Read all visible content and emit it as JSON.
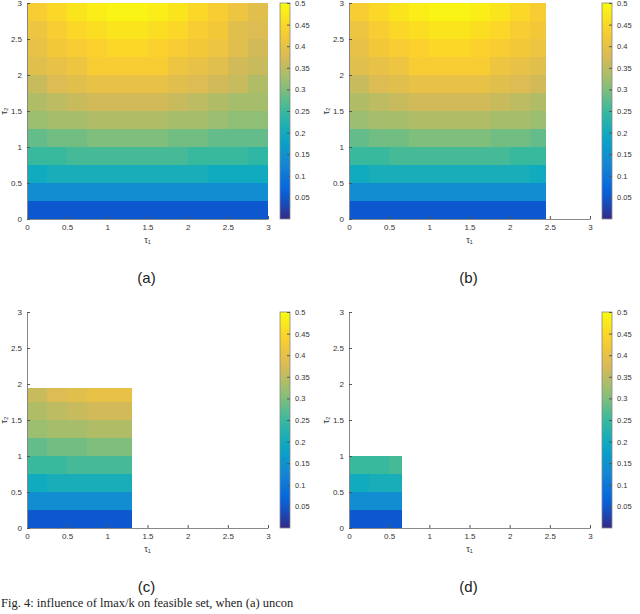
{
  "chart_data": [
    {
      "type": "heatmap",
      "title": "(a)",
      "xlabel": "τ₁",
      "ylabel": "τ₂",
      "xlim": [
        0,
        3
      ],
      "ylim": [
        0,
        3
      ],
      "xticks": [
        0,
        0.5,
        1,
        1.5,
        2,
        2.5,
        3
      ],
      "yticks": [
        0,
        0.5,
        1,
        1.5,
        2,
        2.5,
        3
      ],
      "grid": false,
      "x": [
        0,
        0.25,
        0.5,
        0.75,
        1,
        1.25,
        1.5,
        1.75,
        2,
        2.25,
        2.5,
        2.75,
        3
      ],
      "y": [
        0,
        0.25,
        0.5,
        0.75,
        1,
        1.25,
        1.5,
        1.75,
        2,
        2.25,
        2.5,
        2.75,
        3
      ],
      "cells": [
        [
          0.05,
          0.05,
          0.05,
          0.05,
          0.05,
          0.05,
          0.05,
          0.05,
          0.05,
          0.05,
          0.05,
          0.05
        ],
        [
          0.14,
          0.14,
          0.14,
          0.14,
          0.14,
          0.14,
          0.14,
          0.14,
          0.14,
          0.14,
          0.14,
          0.14
        ],
        [
          0.2,
          0.21,
          0.21,
          0.21,
          0.21,
          0.21,
          0.21,
          0.21,
          0.21,
          0.2,
          0.2,
          0.2
        ],
        [
          0.25,
          0.25,
          0.26,
          0.26,
          0.26,
          0.26,
          0.26,
          0.26,
          0.25,
          0.25,
          0.25,
          0.24
        ],
        [
          0.28,
          0.29,
          0.29,
          0.3,
          0.3,
          0.3,
          0.3,
          0.29,
          0.29,
          0.28,
          0.28,
          0.28
        ],
        [
          0.32,
          0.33,
          0.33,
          0.34,
          0.34,
          0.34,
          0.34,
          0.33,
          0.33,
          0.32,
          0.31,
          0.31
        ],
        [
          0.34,
          0.35,
          0.36,
          0.37,
          0.37,
          0.37,
          0.37,
          0.36,
          0.35,
          0.34,
          0.33,
          0.33
        ],
        [
          0.36,
          0.38,
          0.39,
          0.4,
          0.4,
          0.4,
          0.4,
          0.39,
          0.38,
          0.37,
          0.36,
          0.34
        ],
        [
          0.39,
          0.4,
          0.41,
          0.43,
          0.43,
          0.43,
          0.43,
          0.41,
          0.4,
          0.39,
          0.37,
          0.36
        ],
        [
          0.4,
          0.42,
          0.43,
          0.44,
          0.45,
          0.45,
          0.44,
          0.43,
          0.42,
          0.41,
          0.39,
          0.37
        ],
        [
          0.41,
          0.43,
          0.45,
          0.46,
          0.47,
          0.47,
          0.46,
          0.45,
          0.43,
          0.42,
          0.39,
          0.38
        ],
        [
          0.43,
          0.45,
          0.47,
          0.48,
          0.49,
          0.49,
          0.48,
          0.47,
          0.45,
          0.43,
          0.41,
          0.39
        ]
      ],
      "colorbar": {
        "range": [
          0,
          0.5
        ],
        "ticks": [
          0.05,
          0.1,
          0.15,
          0.2,
          0.25,
          0.3,
          0.35,
          0.4,
          0.45,
          0.5
        ]
      }
    },
    {
      "type": "heatmap",
      "title": "(b)",
      "xlabel": "τ₁",
      "ylabel": "τ₂",
      "xlim": [
        0,
        3
      ],
      "ylim": [
        0,
        3
      ],
      "xticks": [
        0,
        0.5,
        1,
        1.5,
        2,
        2.5,
        3
      ],
      "yticks": [
        0,
        0.5,
        1,
        1.5,
        2,
        2.5,
        3
      ],
      "grid": false,
      "x": [
        0,
        0.25,
        0.5,
        0.75,
        1,
        1.25,
        1.5,
        1.75,
        2,
        2.25,
        2.45
      ],
      "y": [
        0,
        0.25,
        0.5,
        0.75,
        1,
        1.25,
        1.5,
        1.75,
        2,
        2.25,
        2.5,
        2.75,
        3
      ],
      "cells": [
        [
          0.05,
          0.05,
          0.05,
          0.05,
          0.05,
          0.05,
          0.05,
          0.05,
          0.05,
          0.05
        ],
        [
          0.14,
          0.14,
          0.14,
          0.14,
          0.14,
          0.14,
          0.14,
          0.14,
          0.14,
          0.14
        ],
        [
          0.2,
          0.21,
          0.21,
          0.21,
          0.21,
          0.21,
          0.21,
          0.21,
          0.21,
          0.2
        ],
        [
          0.25,
          0.25,
          0.26,
          0.26,
          0.26,
          0.26,
          0.26,
          0.26,
          0.25,
          0.25
        ],
        [
          0.28,
          0.29,
          0.29,
          0.3,
          0.3,
          0.3,
          0.3,
          0.29,
          0.29,
          0.28
        ],
        [
          0.32,
          0.33,
          0.33,
          0.34,
          0.34,
          0.34,
          0.34,
          0.33,
          0.33,
          0.32
        ],
        [
          0.34,
          0.35,
          0.36,
          0.37,
          0.37,
          0.37,
          0.37,
          0.36,
          0.35,
          0.34
        ],
        [
          0.36,
          0.38,
          0.39,
          0.4,
          0.4,
          0.4,
          0.4,
          0.39,
          0.38,
          0.37
        ],
        [
          0.39,
          0.4,
          0.41,
          0.43,
          0.43,
          0.43,
          0.43,
          0.41,
          0.4,
          0.39
        ],
        [
          0.4,
          0.42,
          0.43,
          0.44,
          0.45,
          0.45,
          0.44,
          0.43,
          0.42,
          0.41
        ],
        [
          0.41,
          0.43,
          0.45,
          0.46,
          0.47,
          0.47,
          0.46,
          0.45,
          0.43,
          0.42
        ],
        [
          0.43,
          0.45,
          0.47,
          0.48,
          0.49,
          0.49,
          0.48,
          0.47,
          0.45,
          0.43
        ]
      ],
      "colorbar": {
        "range": [
          0,
          0.5
        ],
        "ticks": [
          0.05,
          0.1,
          0.15,
          0.2,
          0.25,
          0.3,
          0.35,
          0.4,
          0.45,
          0.5
        ]
      }
    },
    {
      "type": "heatmap",
      "title": "(c)",
      "xlabel": "τ₁",
      "ylabel": "τ₂",
      "xlim": [
        0,
        3
      ],
      "ylim": [
        0,
        3
      ],
      "xticks": [
        0,
        0.5,
        1,
        1.5,
        2,
        2.5,
        3
      ],
      "yticks": [
        0,
        0.5,
        1,
        1.5,
        2,
        2.5,
        3
      ],
      "grid": false,
      "x": [
        0,
        0.25,
        0.5,
        0.75,
        1,
        1.25,
        1.3
      ],
      "y": [
        0,
        0.25,
        0.5,
        0.75,
        1,
        1.25,
        1.5,
        1.75,
        1.95
      ],
      "cells": [
        [
          0.05,
          0.05,
          0.05,
          0.05,
          0.05,
          0.05
        ],
        [
          0.14,
          0.14,
          0.14,
          0.14,
          0.14,
          0.14
        ],
        [
          0.2,
          0.21,
          0.21,
          0.21,
          0.21,
          0.21
        ],
        [
          0.25,
          0.25,
          0.26,
          0.26,
          0.26,
          0.26
        ],
        [
          0.28,
          0.29,
          0.29,
          0.3,
          0.3,
          0.3
        ],
        [
          0.32,
          0.33,
          0.33,
          0.34,
          0.34,
          0.34
        ],
        [
          0.34,
          0.35,
          0.36,
          0.37,
          0.37,
          0.37
        ],
        [
          0.36,
          0.38,
          0.39,
          0.4,
          0.4,
          0.4
        ]
      ],
      "colorbar": {
        "range": [
          0,
          0.5
        ],
        "ticks": [
          0.05,
          0.1,
          0.15,
          0.2,
          0.25,
          0.3,
          0.35,
          0.4,
          0.45,
          0.5
        ]
      }
    },
    {
      "type": "heatmap",
      "title": "(d)",
      "xlabel": "τ₁",
      "ylabel": "τ₂",
      "xlim": [
        0,
        3
      ],
      "ylim": [
        0,
        3
      ],
      "xticks": [
        0,
        0.5,
        1,
        1.5,
        2,
        2.5,
        3
      ],
      "yticks": [
        0,
        0.5,
        1,
        1.5,
        2,
        2.5,
        3
      ],
      "grid": false,
      "x": [
        0,
        0.25,
        0.5,
        0.65
      ],
      "y": [
        0,
        0.25,
        0.5,
        0.75,
        1
      ],
      "cells": [
        [
          0.05,
          0.05,
          0.05
        ],
        [
          0.14,
          0.14,
          0.14
        ],
        [
          0.2,
          0.21,
          0.21
        ],
        [
          0.25,
          0.25,
          0.26
        ]
      ],
      "colorbar": {
        "range": [
          0,
          0.5
        ],
        "ticks": [
          0.05,
          0.1,
          0.15,
          0.2,
          0.25,
          0.3,
          0.35,
          0.4,
          0.45,
          0.5
        ]
      }
    }
  ],
  "caption": "Fig. 4: influence of lmax/k on feasible set, when (a) uncon"
}
